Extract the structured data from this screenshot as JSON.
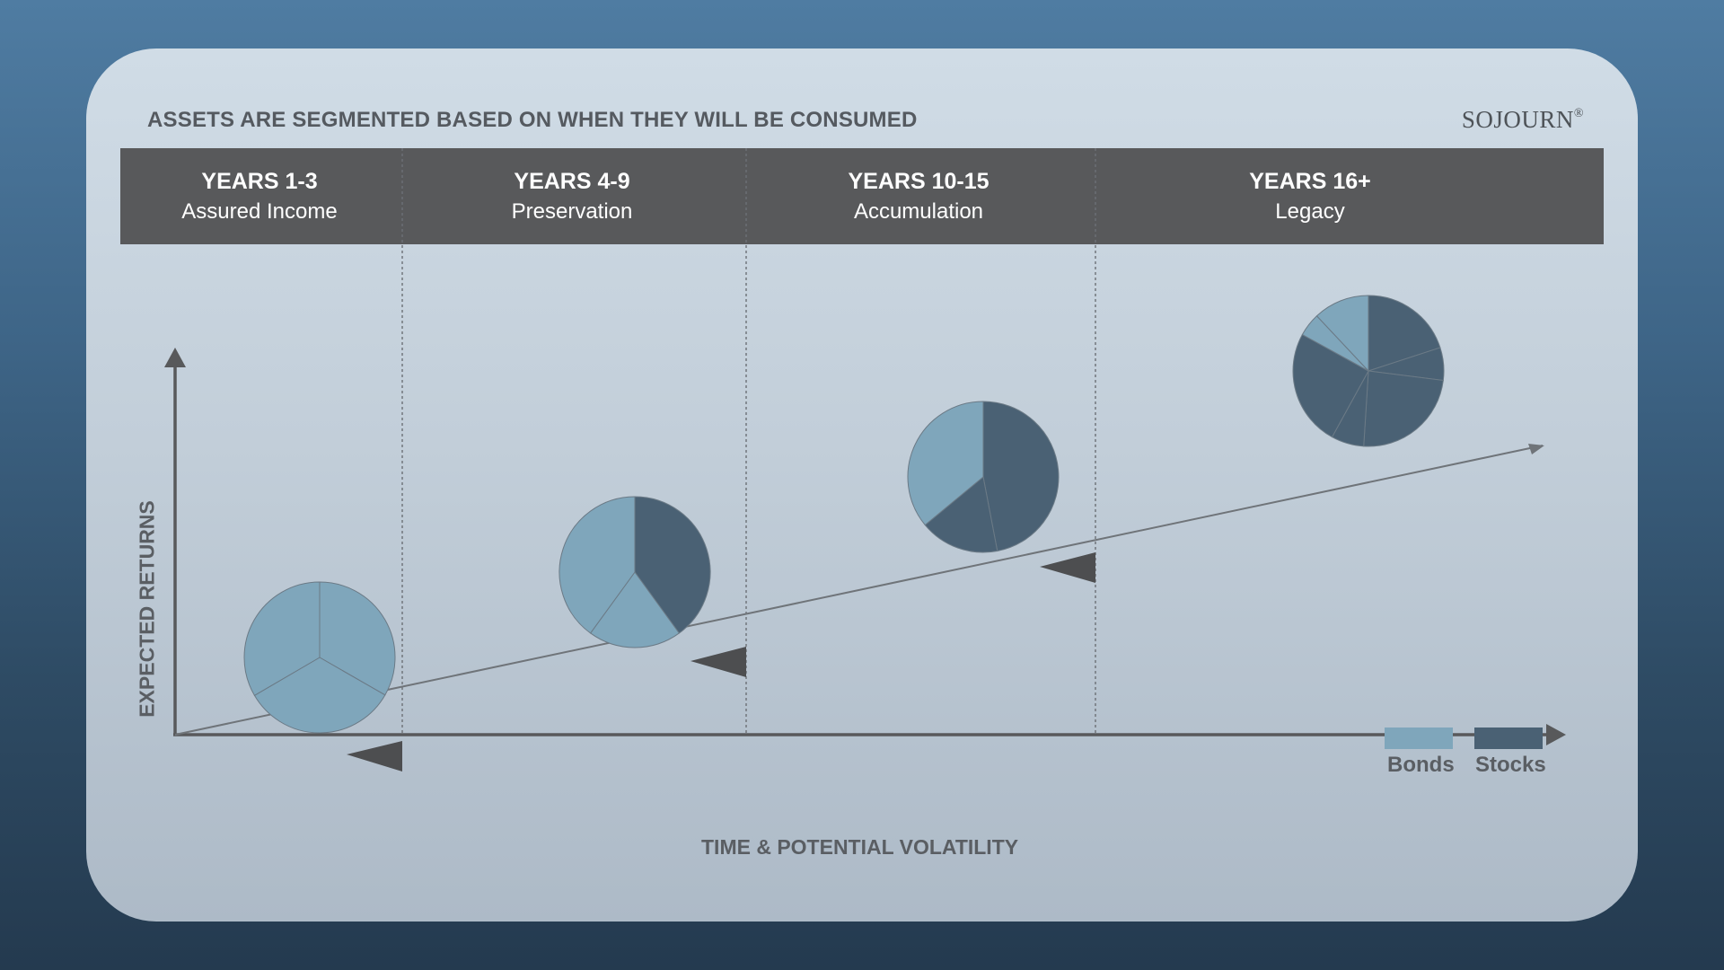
{
  "headline": "ASSETS ARE SEGMENTED BASED ON WHEN THEY WILL BE CONSUMED",
  "brand": {
    "name": "SOJOURN",
    "mark": "®"
  },
  "columns": [
    {
      "years": "YEARS 1-3",
      "name": "Assured Income"
    },
    {
      "years": "YEARS 4-9",
      "name": "Preservation"
    },
    {
      "years": "YEARS 10-15",
      "name": "Accumulation"
    },
    {
      "years": "YEARS 16+",
      "name": "Legacy"
    }
  ],
  "axes": {
    "x_label": "TIME & POTENTIAL VOLATILITY",
    "y_label": "EXPECTED RETURNS"
  },
  "legend": {
    "bonds": "Bonds",
    "stocks": "Stocks"
  },
  "colors": {
    "bonds": "#7fa6bb",
    "stocks": "#4a6174",
    "band": "#58595b",
    "axis": "#58595b",
    "text": "#5a5e63"
  },
  "pies": [
    {
      "column": "YEARS 1-3",
      "slices": [
        {
          "kind": "bonds",
          "percent": 33.3
        },
        {
          "kind": "bonds",
          "percent": 33.3
        },
        {
          "kind": "bonds",
          "percent": 33.4
        }
      ]
    },
    {
      "column": "YEARS 4-9",
      "slices": [
        {
          "kind": "stocks",
          "percent": 40
        },
        {
          "kind": "bonds",
          "percent": 20
        },
        {
          "kind": "bonds",
          "percent": 40
        }
      ]
    },
    {
      "column": "YEARS 10-15",
      "slices": [
        {
          "kind": "stocks",
          "percent": 47
        },
        {
          "kind": "stocks",
          "percent": 17
        },
        {
          "kind": "bonds",
          "percent": 36
        }
      ]
    },
    {
      "column": "YEARS 16+",
      "slices": [
        {
          "kind": "stocks",
          "percent": 20
        },
        {
          "kind": "stocks",
          "percent": 7
        },
        {
          "kind": "stocks",
          "percent": 24
        },
        {
          "kind": "stocks",
          "percent": 7
        },
        {
          "kind": "stocks",
          "percent": 25
        },
        {
          "kind": "bonds",
          "percent": 5
        },
        {
          "kind": "bonds",
          "percent": 12
        }
      ]
    }
  ]
}
